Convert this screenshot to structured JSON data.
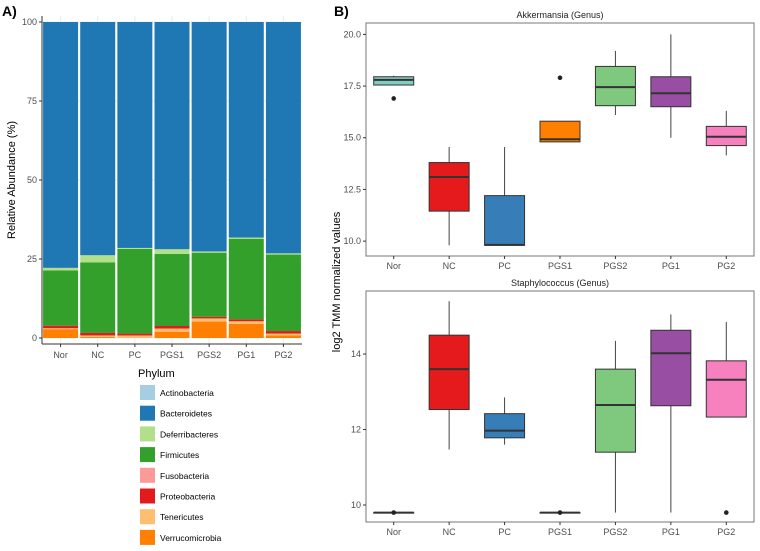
{
  "panel_labels": {
    "a": "A)",
    "b": "B)"
  },
  "chart_data": [
    {
      "type": "bar",
      "stacked": true,
      "title": "",
      "xlabel": "",
      "ylabel": "Relative Abundance (%)",
      "ylim": [
        0,
        100
      ],
      "yticks": [
        "0",
        "25",
        "50",
        "75",
        "100"
      ],
      "categories": [
        "Nor",
        "NC",
        "PC",
        "PGS1",
        "PGS2",
        "PG1",
        "PG2"
      ],
      "legend": {
        "title": "Phylum",
        "position": "bottom-left"
      },
      "series": [
        {
          "name": "Verrucomicrobia",
          "color": "#ff7f00",
          "values": [
            2.8,
            0.3,
            0.0,
            2.0,
            5.2,
            4.5,
            0.8
          ]
        },
        {
          "name": "Tenericutes",
          "color": "#fdbf6f",
          "values": [
            0.3,
            0.5,
            0.8,
            1.0,
            1.0,
            0.8,
            0.6
          ]
        },
        {
          "name": "Proteobacteria",
          "color": "#e31a1c",
          "values": [
            0.8,
            0.8,
            0.6,
            0.8,
            0.5,
            0.6,
            0.8
          ]
        },
        {
          "name": "Fusobacteria",
          "color": "#fb9a99",
          "values": [
            0.0,
            0.0,
            0.0,
            0.0,
            0.0,
            0.0,
            0.0
          ]
        },
        {
          "name": "Firmicutes",
          "color": "#33a02c",
          "values": [
            17.5,
            22.3,
            26.8,
            22.8,
            20.3,
            25.5,
            24.2
          ]
        },
        {
          "name": "Deferribacteres",
          "color": "#b2df8a",
          "values": [
            0.8,
            2.3,
            0.3,
            1.5,
            0.4,
            0.4,
            0.4
          ]
        },
        {
          "name": "Bacteroidetes",
          "color": "#1f78b4",
          "values": [
            77.8,
            73.8,
            71.5,
            71.9,
            72.6,
            68.2,
            73.2
          ]
        },
        {
          "name": "Actinobacteria",
          "color": "#a6cee3",
          "values": [
            0.0,
            0.0,
            0.0,
            0.0,
            0.0,
            0.0,
            0.0
          ]
        }
      ],
      "legend_order": [
        "Actinobacteria",
        "Bacteroidetes",
        "Deferribacteres",
        "Firmicutes",
        "Fusobacteria",
        "Proteobacteria",
        "Tenericutes",
        "Verrucomicrobia"
      ]
    },
    {
      "type": "box",
      "title": "Akkermansia (Genus)",
      "ylabel": "log2 TMM normalized values",
      "ylim": [
        9.28,
        20.55
      ],
      "yticks": [
        "10.0",
        "12.5",
        "15.0",
        "17.5",
        "20.0"
      ],
      "ytick_values": [
        10,
        12.5,
        15,
        17.5,
        20
      ],
      "categories": [
        "Nor",
        "NC",
        "PC",
        "PGS1",
        "PGS2",
        "PG1",
        "PG2"
      ],
      "colors": [
        "#80cdc1",
        "#e41a1c",
        "#377eb8",
        "#ff7f00",
        "#7fc97f",
        "#984ea3",
        "#f781bf"
      ],
      "boxes": [
        {
          "min": 17.55,
          "q1": 17.55,
          "median": 17.8,
          "q3": 17.95,
          "max": 18.0,
          "outliers": [
            16.9
          ]
        },
        {
          "min": 9.8,
          "q1": 11.45,
          "median": 13.1,
          "q3": 13.8,
          "max": 14.55,
          "outliers": []
        },
        {
          "min": 9.8,
          "q1": 9.8,
          "median": 9.82,
          "q3": 12.2,
          "max": 14.55,
          "outliers": []
        },
        {
          "min": 14.8,
          "q1": 14.8,
          "median": 14.93,
          "q3": 15.8,
          "max": 15.8,
          "outliers": [
            17.9
          ]
        },
        {
          "min": 16.1,
          "q1": 16.55,
          "median": 17.45,
          "q3": 18.45,
          "max": 19.2,
          "outliers": []
        },
        {
          "min": 15.0,
          "q1": 16.5,
          "median": 17.15,
          "q3": 17.95,
          "max": 20.0,
          "outliers": []
        },
        {
          "min": 14.15,
          "q1": 14.62,
          "median": 15.05,
          "q3": 15.55,
          "max": 16.3,
          "outliers": []
        }
      ]
    },
    {
      "type": "box",
      "title": "Staphylococcus (Genus)",
      "ylabel": "log2 TMM normalized values",
      "ylim": [
        9.55,
        15.67
      ],
      "yticks": [
        "10",
        "12",
        "14"
      ],
      "ytick_values": [
        10,
        12,
        14
      ],
      "categories": [
        "Nor",
        "NC",
        "PC",
        "PGS1",
        "PGS2",
        "PG1",
        "PG2"
      ],
      "colors": [
        "#80cdc1",
        "#e41a1c",
        "#377eb8",
        "#ff7f00",
        "#7fc97f",
        "#984ea3",
        "#f781bf"
      ],
      "boxes": [
        {
          "min": 9.8,
          "q1": 9.8,
          "median": 9.8,
          "q3": 9.8,
          "max": 9.8,
          "outliers": [
            9.8
          ]
        },
        {
          "min": 11.47,
          "q1": 12.53,
          "median": 13.6,
          "q3": 14.5,
          "max": 15.4,
          "outliers": []
        },
        {
          "min": 11.6,
          "q1": 11.78,
          "median": 11.97,
          "q3": 12.42,
          "max": 12.85,
          "outliers": []
        },
        {
          "min": 9.8,
          "q1": 9.8,
          "median": 9.8,
          "q3": 9.8,
          "max": 9.8,
          "outliers": [
            9.8
          ]
        },
        {
          "min": 9.8,
          "q1": 11.4,
          "median": 12.65,
          "q3": 13.6,
          "max": 14.35,
          "outliers": []
        },
        {
          "min": 9.8,
          "q1": 12.63,
          "median": 14.02,
          "q3": 14.63,
          "max": 15.05,
          "outliers": []
        },
        {
          "min": 12.33,
          "q1": 12.33,
          "median": 13.32,
          "q3": 13.82,
          "max": 14.85,
          "outliers": [
            9.8
          ]
        }
      ]
    }
  ]
}
